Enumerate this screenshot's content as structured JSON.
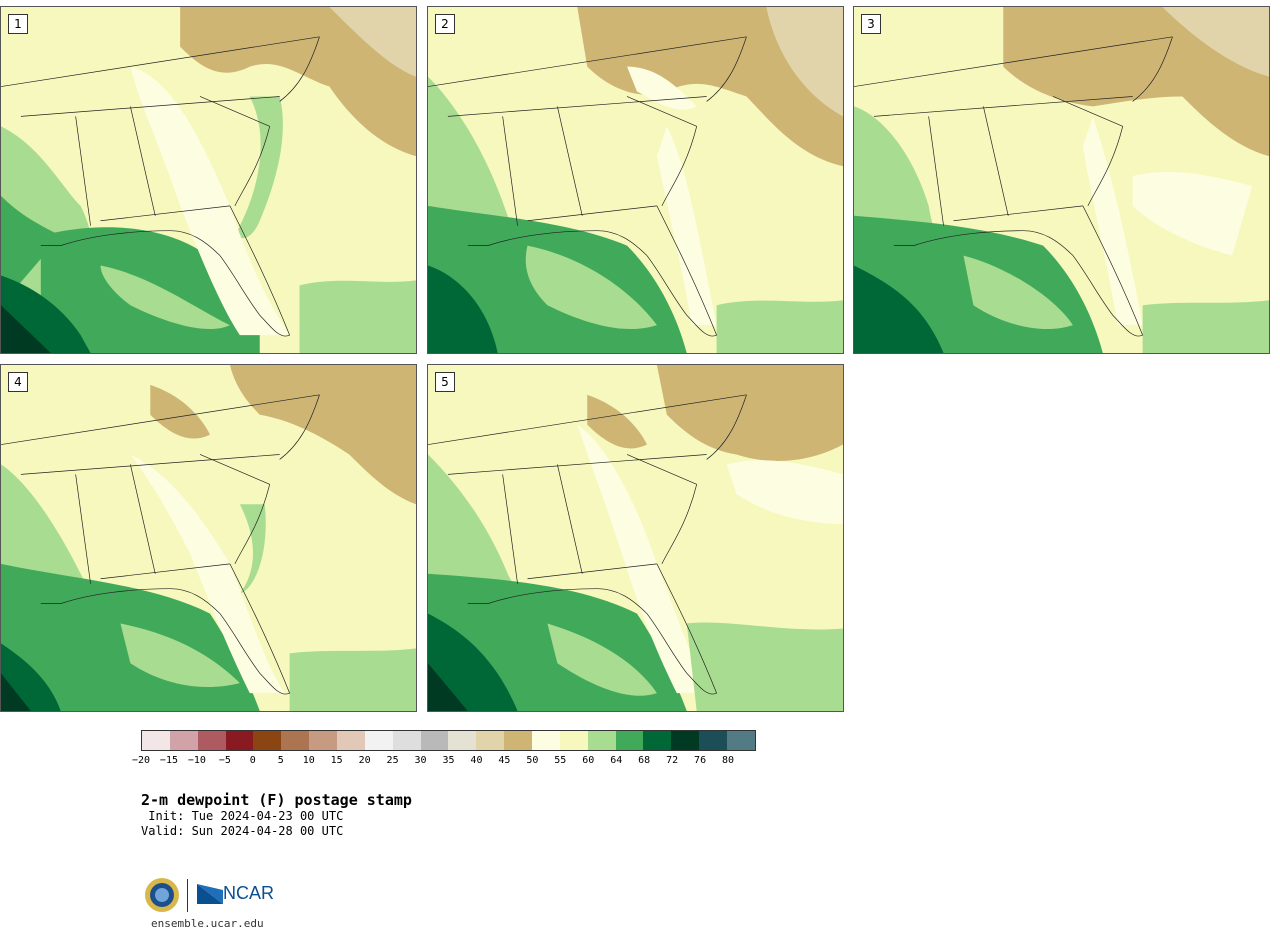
{
  "members": [
    {
      "label": "1"
    },
    {
      "label": "2"
    },
    {
      "label": "3"
    },
    {
      "label": "4"
    },
    {
      "label": "5"
    }
  ],
  "title": "2-m dewpoint (F) postage stamp",
  "init": " Init: Tue 2024-04-23 00 UTC",
  "valid": "Valid: Sun 2024-04-28 00 UTC",
  "colorbar": {
    "colors": [
      "#f3e6e6",
      "#d1a3a8",
      "#ad5a60",
      "#8a1a22",
      "#8b4513",
      "#ad7451",
      "#c79b81",
      "#e2c8b6",
      "#f2f2f2",
      "#dedede",
      "#b9b9b9",
      "#e3e2d3",
      "#e2d4aa",
      "#ceb574",
      "#fdfde2",
      "#f6f8bd",
      "#a8dc90",
      "#41a95a",
      "#006837",
      "#003a23",
      "#1c4e58",
      "#527b84"
    ],
    "ticks": [
      "−20",
      "−15",
      "−10",
      "−5",
      "0",
      "5",
      "10",
      "15",
      "20",
      "25",
      "30",
      "35",
      "40",
      "45",
      "50",
      "55",
      "60",
      "64",
      "68",
      "72",
      "76",
      "80"
    ]
  },
  "map_colors": {
    "dry_brown": "#ceb574",
    "tan": "#e2d4aa",
    "cream": "#fdfde2",
    "pale_yellow": "#f6f8bd",
    "light_green": "#a8dc90",
    "green": "#41a95a",
    "dark_green": "#006837",
    "darkest_green": "#003a23"
  },
  "logos": {
    "nsf": "nsf-seal-icon",
    "ncar": "NCAR"
  },
  "site": "ensemble.ucar.edu"
}
